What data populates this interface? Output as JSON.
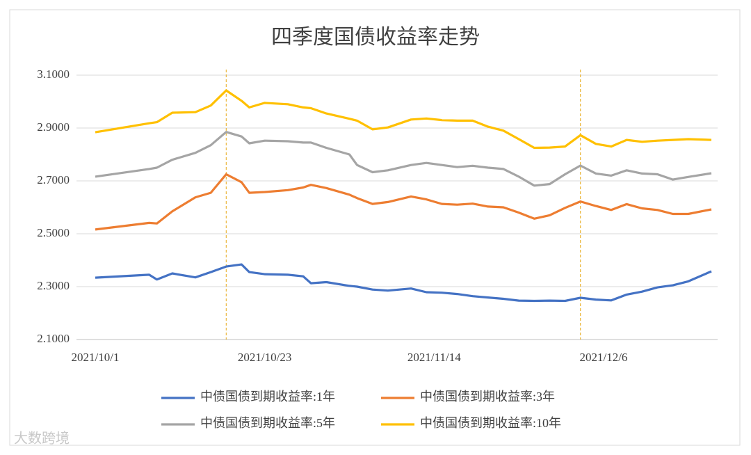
{
  "chart_data": {
    "type": "line",
    "title": "四季度国债收益率走势",
    "x": [
      "2021/10/1",
      "2021/10/8",
      "2021/10/9",
      "2021/10/11",
      "2021/10/14",
      "2021/10/16",
      "2021/10/18",
      "2021/10/20",
      "2021/10/21",
      "2021/10/23",
      "2021/10/26",
      "2021/10/28",
      "2021/10/29",
      "2021/10/31",
      "2021/11/3",
      "2021/11/4",
      "2021/11/6",
      "2021/11/8",
      "2021/11/11",
      "2021/11/13",
      "2021/11/15",
      "2021/11/17",
      "2021/11/19",
      "2021/11/21",
      "2021/11/23",
      "2021/11/25",
      "2021/11/27",
      "2021/11/29",
      "2021/12/1",
      "2021/12/3",
      "2021/12/5",
      "2021/12/7",
      "2021/12/9",
      "2021/12/11",
      "2021/12/13",
      "2021/12/15",
      "2021/12/17",
      "2021/12/20"
    ],
    "series": [
      {
        "name": "中债国债到期收益率:1年",
        "color": "#4472c4",
        "values": [
          2.334,
          2.345,
          2.327,
          2.35,
          2.335,
          2.355,
          2.376,
          2.384,
          2.355,
          2.347,
          2.345,
          2.339,
          2.313,
          2.317,
          2.303,
          2.3,
          2.289,
          2.285,
          2.293,
          2.279,
          2.277,
          2.272,
          2.264,
          2.259,
          2.254,
          2.247,
          2.246,
          2.247,
          2.246,
          2.258,
          2.251,
          2.248,
          2.27,
          2.281,
          2.297,
          2.305,
          2.32,
          2.358
        ]
      },
      {
        "name": "中债国债到期收益率:3年",
        "color": "#ed7d31",
        "values": [
          2.516,
          2.541,
          2.539,
          2.585,
          2.638,
          2.655,
          2.725,
          2.695,
          2.655,
          2.658,
          2.665,
          2.675,
          2.685,
          2.673,
          2.648,
          2.635,
          2.613,
          2.62,
          2.641,
          2.63,
          2.613,
          2.61,
          2.614,
          2.603,
          2.6,
          2.58,
          2.557,
          2.57,
          2.598,
          2.622,
          2.605,
          2.59,
          2.612,
          2.596,
          2.59,
          2.575,
          2.575,
          2.592
        ]
      },
      {
        "name": "中债国债到期收益率:5年",
        "color": "#a5a5a5",
        "values": [
          2.716,
          2.745,
          2.75,
          2.78,
          2.806,
          2.835,
          2.885,
          2.868,
          2.842,
          2.852,
          2.85,
          2.845,
          2.845,
          2.825,
          2.8,
          2.76,
          2.733,
          2.74,
          2.76,
          2.768,
          2.76,
          2.752,
          2.757,
          2.75,
          2.745,
          2.716,
          2.682,
          2.688,
          2.725,
          2.758,
          2.728,
          2.72,
          2.74,
          2.728,
          2.725,
          2.705,
          2.715,
          2.729
        ]
      },
      {
        "name": "中债国债到期收益率:10年",
        "color": "#ffc000",
        "values": [
          2.884,
          2.918,
          2.922,
          2.958,
          2.96,
          2.985,
          3.042,
          3.003,
          2.978,
          2.995,
          2.99,
          2.978,
          2.975,
          2.955,
          2.935,
          2.928,
          2.895,
          2.902,
          2.932,
          2.936,
          2.93,
          2.928,
          2.928,
          2.905,
          2.89,
          2.858,
          2.825,
          2.826,
          2.83,
          2.873,
          2.84,
          2.83,
          2.855,
          2.848,
          2.852,
          2.855,
          2.858,
          2.855
        ]
      }
    ],
    "xlim": [
      "2021/10/1",
      "2021/12/20"
    ],
    "xticks": [
      "2021/10/1",
      "2021/10/23",
      "2021/11/14",
      "2021/12/6"
    ],
    "reference_lines": [
      "2021/10/18",
      "2021/12/3"
    ],
    "ylim": [
      2.1,
      3.1
    ],
    "yticks": [
      {
        "value": 2.1,
        "label": "2.1000"
      },
      {
        "value": 2.3,
        "label": "2.3000"
      },
      {
        "value": 2.5,
        "label": "2.5000"
      },
      {
        "value": 2.7,
        "label": "2.7000"
      },
      {
        "value": 2.9,
        "label": "2.9000"
      },
      {
        "value": 3.1,
        "label": "3.1000"
      }
    ],
    "grid": true,
    "legend": "bottom",
    "watermark": "大数跨境"
  }
}
